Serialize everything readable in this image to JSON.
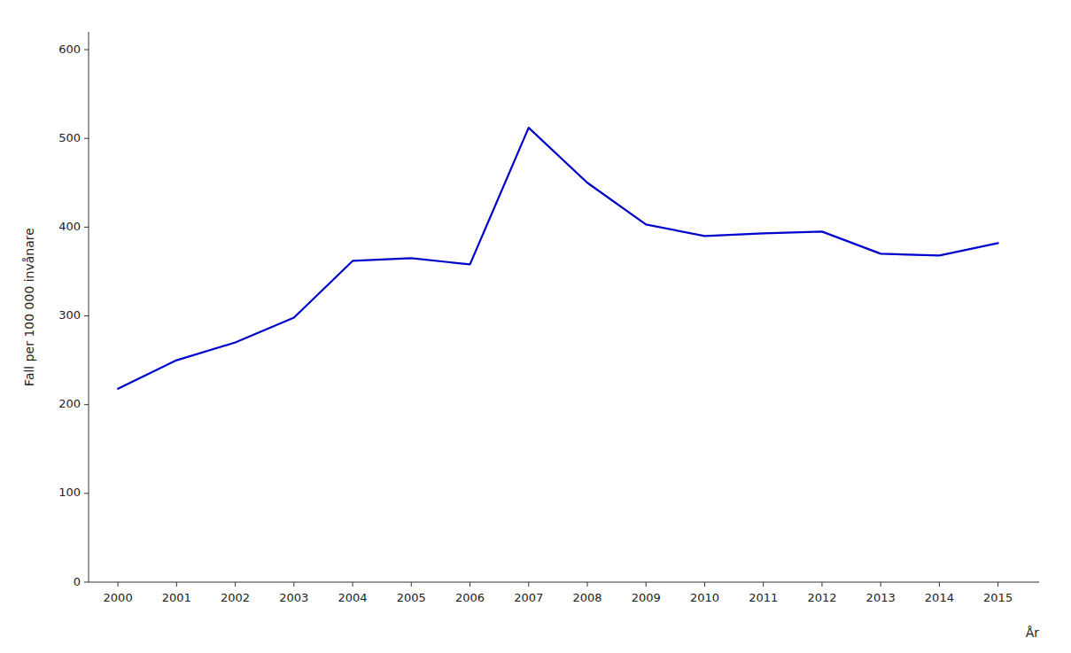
{
  "chart_data": {
    "type": "line",
    "x": [
      2000,
      2001,
      2002,
      2003,
      2004,
      2005,
      2006,
      2007,
      2008,
      2009,
      2010,
      2011,
      2012,
      2013,
      2014,
      2015
    ],
    "values": [
      218,
      250,
      270,
      298,
      362,
      365,
      358,
      512,
      450,
      403,
      390,
      393,
      395,
      370,
      368,
      382
    ],
    "color": "#0000CC",
    "xlabel": "År",
    "ylabel": "Fall per 100 000 invånare",
    "xlim": [
      1999.5,
      2015.7
    ],
    "xticks": [
      2000,
      2001,
      2002,
      2003,
      2004,
      2005,
      2006,
      2007,
      2008,
      2009,
      2010,
      2011,
      2012,
      2013,
      2014,
      2015
    ],
    "ylim": [
      0,
      620
    ],
    "yticks": [
      0,
      100,
      200,
      300,
      400,
      500,
      600
    ],
    "grid": false
  }
}
